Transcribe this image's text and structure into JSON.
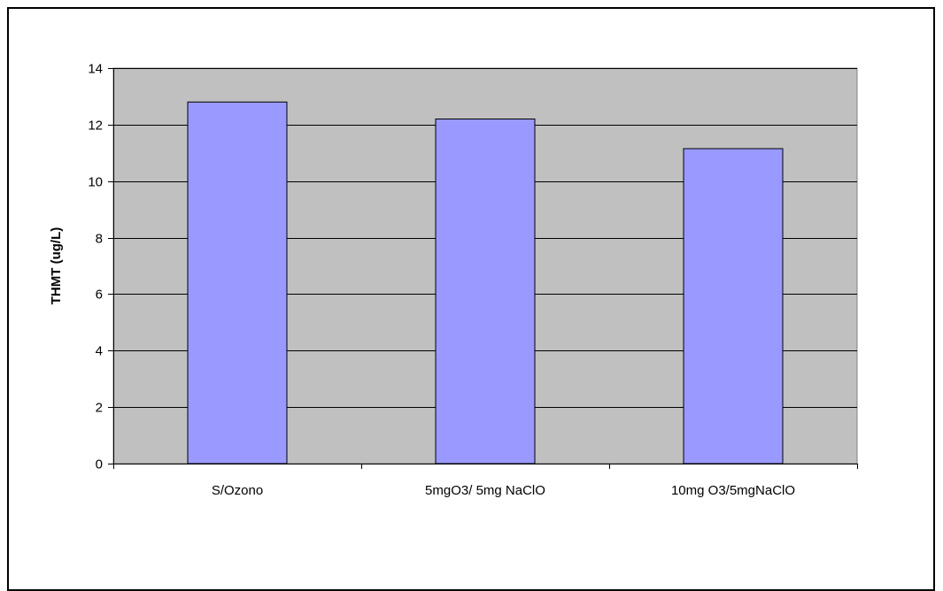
{
  "chart_data": {
    "type": "bar",
    "title": "",
    "xlabel": "",
    "ylabel": "THMT (ug/L)",
    "categories": [
      "S/Ozono",
      "5mgO3/ 5mg NaClO",
      "10mg O3/5mgNaClO"
    ],
    "values": [
      12.8,
      12.2,
      11.15
    ],
    "ylim": [
      0,
      14
    ],
    "yticks": [
      0,
      2,
      4,
      6,
      8,
      10,
      12,
      14
    ],
    "grid": true,
    "legend": "none",
    "colors": {
      "plot_background": "#c0c0c0",
      "bar_fill": "#9999ff",
      "bar_stroke": "#000000",
      "gridline": "#000000"
    }
  }
}
